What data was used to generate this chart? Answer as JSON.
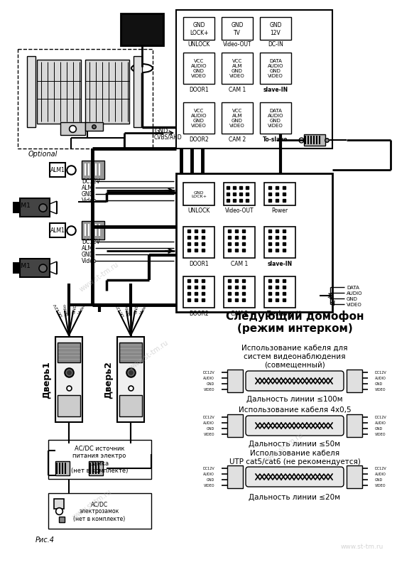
{
  "bg_color": "#ffffff",
  "lc": "#000000",
  "tc": "#000000",
  "wm": "www.st-tm.ru",
  "wm2": "www.st-tm.ru",
  "optional": "Optional",
  "gnd": "GND",
  "cvbs": "CVBS/AHD",
  "alm1": "ALM1",
  "cam1": "CAM1",
  "dc12v": "DC12V",
  "alm": "ALM",
  "gnd2": "GND",
  "video": "Video",
  "door1": "Дверь1",
  "door2": "Дверь2",
  "acdc_src": "AC/DC источник\nпитания электро\nзамка\n(нет в комплекте)",
  "acdc_lock": "AC/DC\nэлектрозамок\n(нет в комплекте)",
  "ric4": "Рис.4",
  "next_intercom": "Следующий домофон",
  "next_intercom2": "(режим интерком)",
  "cable1_t": "Использование кабеля для",
  "cable1_b": "систем видеонаблюдения",
  "cable1_c": "(совмещенный)",
  "dist1": "Дальность линии ≤100м",
  "cable2": "Использование кабеля 4х0,5",
  "dist2": "Дальность линии ≤50м",
  "cable3a": "Использование кабеля",
  "cable3b": "UTP cat5/cat6 (не рекомендуется)",
  "dist3": "Дальность линии ≤20м",
  "unlock": "UNLOCK",
  "video_out": "Video-OUT",
  "dc_in": "DC-IN",
  "door1_lbl": "DOOR1",
  "cam1_lbl": "CAM 1",
  "slavein": "slave-IN",
  "door2_lbl": "DOOR2",
  "cam2_lbl": "CAM 2",
  "toslave": "To-slave",
  "power": "Power",
  "data": "DATA",
  "audio": "AUDIO",
  "gnd3": "GND",
  "video2": "VIDEO"
}
